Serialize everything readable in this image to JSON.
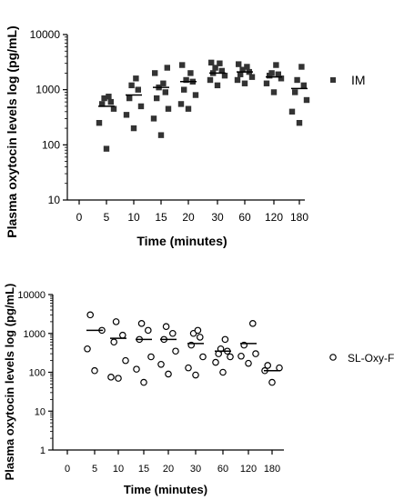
{
  "chart_data": [
    {
      "type": "scatter",
      "xlabel": "Time (minutes)",
      "ylabel": "Plasma oxytocin levels log (pg/mL)",
      "yscale": "log",
      "ylim": [
        10,
        10000
      ],
      "yticks": [
        "10",
        "100",
        "1000",
        "10000"
      ],
      "categories": [
        "0",
        "5",
        "10",
        "15",
        "20",
        "30",
        "60",
        "120",
        "180"
      ],
      "marker": "square-filled",
      "color": "#333333",
      "legend": {
        "label": "IM",
        "position": "right"
      },
      "series": [
        {
          "name": "IM",
          "groups": [
            {
              "x": "5",
              "values": [
                85,
                250,
                450,
                550,
                600,
                700,
                750
              ],
              "mean": 500
            },
            {
              "x": "10",
              "values": [
                200,
                350,
                500,
                700,
                1000,
                1200,
                1600
              ],
              "mean": 800
            },
            {
              "x": "15",
              "values": [
                150,
                300,
                450,
                700,
                900,
                1100,
                1300,
                2000,
                2500
              ],
              "mean": 1100
            },
            {
              "x": "20",
              "values": [
                450,
                550,
                800,
                1000,
                1400,
                1500,
                2000,
                2800
              ],
              "mean": 1400
            },
            {
              "x": "30",
              "values": [
                1200,
                1500,
                1800,
                2000,
                2200,
                2500,
                3000,
                3100
              ],
              "mean": 2000
            },
            {
              "x": "60",
              "values": [
                1300,
                1500,
                1700,
                1900,
                2100,
                2300,
                2600,
                2900
              ],
              "mean": 2100
            },
            {
              "x": "120",
              "values": [
                900,
                1300,
                1600,
                1800,
                1900,
                2000,
                2800
              ],
              "mean": 1700
            },
            {
              "x": "180",
              "values": [
                250,
                400,
                650,
                900,
                1200,
                1500,
                2600
              ],
              "mean": 1050
            }
          ]
        }
      ]
    },
    {
      "type": "scatter",
      "xlabel": "Time (minutes)",
      "ylabel": "Plasma oxytocin levels log (pg/mL)",
      "yscale": "log",
      "ylim": [
        1,
        10000
      ],
      "yticks": [
        "1",
        "10",
        "100",
        "1000",
        "10000"
      ],
      "categories": [
        "0",
        "5",
        "10",
        "15",
        "20",
        "30",
        "60",
        "120",
        "180"
      ],
      "marker": "circle-open",
      "color": "#000000",
      "legend": {
        "label": "SL-Oxy-FDT",
        "position": "right"
      },
      "series": [
        {
          "name": "SL-Oxy-FDT",
          "groups": [
            {
              "x": "5",
              "values": [
                110,
                400,
                1200,
                3000
              ],
              "mean": 1200
            },
            {
              "x": "10",
              "values": [
                70,
                75,
                200,
                600,
                900,
                2000
              ],
              "mean": 750
            },
            {
              "x": "15",
              "values": [
                55,
                120,
                250,
                700,
                1200,
                1800
              ],
              "mean": 700
            },
            {
              "x": "20",
              "values": [
                90,
                160,
                350,
                700,
                1000,
                1500
              ],
              "mean": 700
            },
            {
              "x": "30",
              "values": [
                85,
                130,
                250,
                500,
                800,
                1000,
                1200
              ],
              "mean": 550
            },
            {
              "x": "60",
              "values": [
                100,
                180,
                250,
                300,
                350,
                400,
                700
              ],
              "mean": 350
            },
            {
              "x": "120",
              "values": [
                170,
                260,
                300,
                500,
                1800
              ],
              "mean": 550
            },
            {
              "x": "180",
              "values": [
                55,
                110,
                130,
                150
              ],
              "mean": 110
            }
          ]
        }
      ]
    }
  ]
}
